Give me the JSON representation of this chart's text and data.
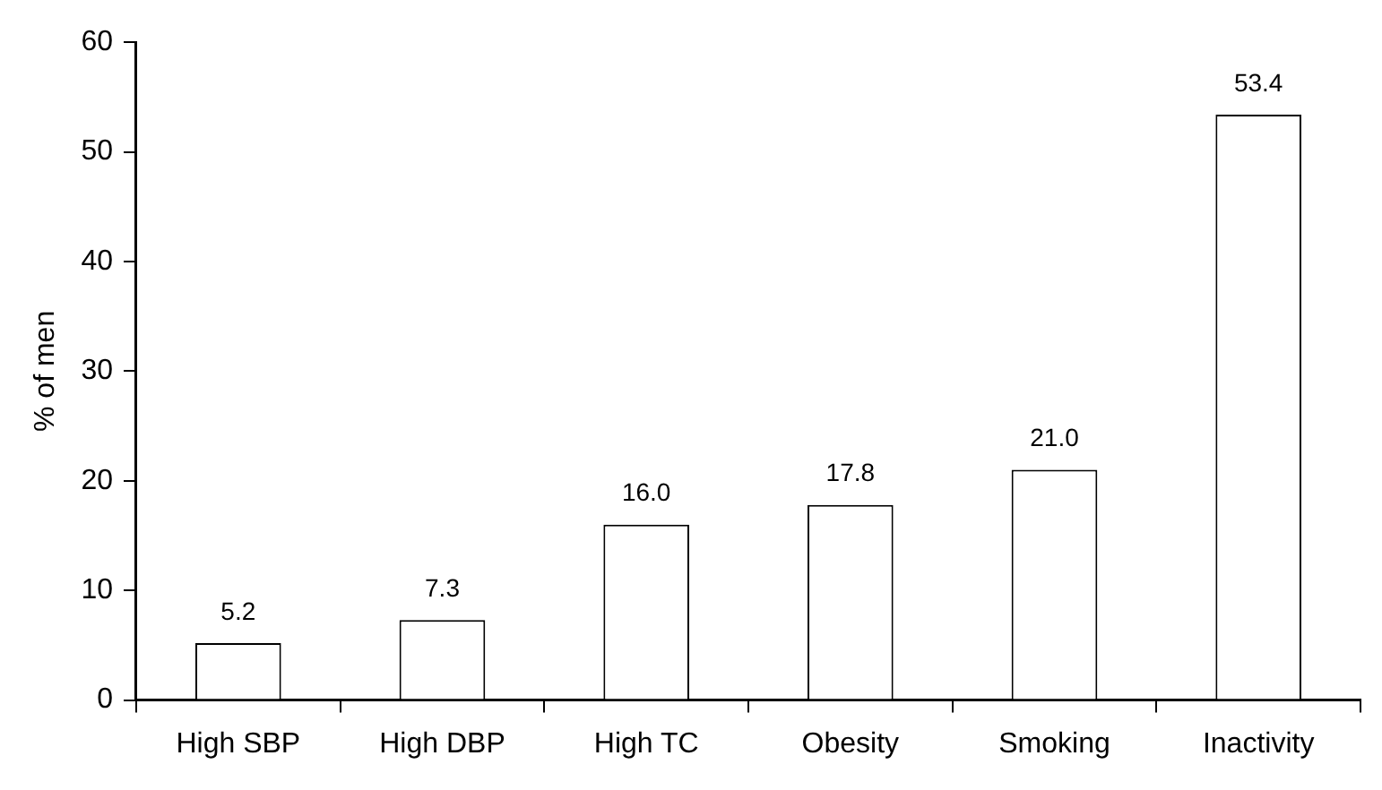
{
  "chart_data": {
    "type": "bar",
    "ylabel": "% of men",
    "categories": [
      "High SBP",
      "High DBP",
      "High TC",
      "Obesity",
      "Smoking",
      "Inactivity"
    ],
    "values": [
      5.2,
      7.3,
      16.0,
      17.8,
      21.0,
      53.4
    ],
    "value_labels": [
      "5.2",
      "7.3",
      "16.0",
      "17.8",
      "21.0",
      "53.4"
    ],
    "color": "#ffffff",
    "ylim": [
      0,
      60
    ],
    "yticks": [
      0,
      10,
      20,
      30,
      40,
      50,
      60
    ],
    "grid": false,
    "legend": false
  }
}
